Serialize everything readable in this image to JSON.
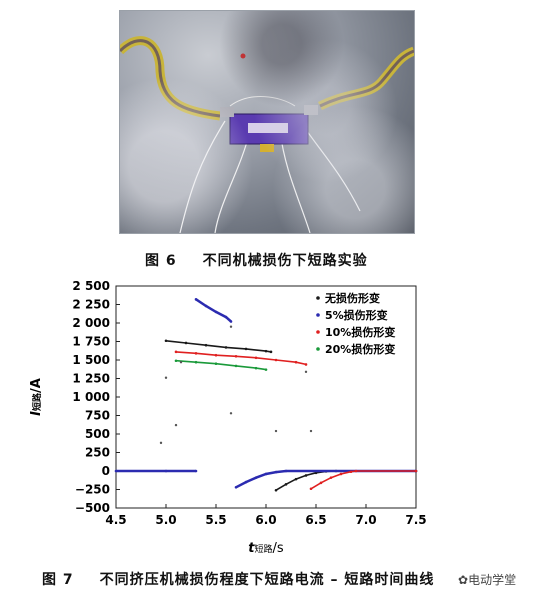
{
  "figure6": {
    "number": "图 6",
    "caption": "不同机械损伤下短路实验"
  },
  "figure7": {
    "number": "图 7",
    "caption": "不同挤压机械损伤程度下短路电流 – 短路时间曲线"
  },
  "watermark": "电动学堂",
  "chart_data": {
    "type": "scatter",
    "ylabel_main": "I",
    "ylabel_sub": "短路",
    "ylabel_unit": "/A",
    "xlabel_main": "t",
    "xlabel_sub": "短路",
    "xlabel_unit": "/s",
    "xlim": [
      4.5,
      7.5
    ],
    "ylim": [
      -500,
      2500
    ],
    "xticks": [
      "4.5",
      "5.0",
      "5.5",
      "6.0",
      "6.5",
      "7.0",
      "7.5"
    ],
    "yticks": [
      "2 500",
      "2 250",
      "2 000",
      "1 750",
      "1 500",
      "1 250",
      "1 000",
      "750",
      "500",
      "250",
      "0",
      "−250",
      "−500"
    ],
    "ytick_values": [
      2500,
      2250,
      2000,
      1750,
      1500,
      1250,
      1000,
      750,
      500,
      250,
      0,
      -250,
      -500
    ],
    "legend_position": "top-right",
    "grid": false,
    "series": [
      {
        "name": "无损伤形变",
        "color": "#1a1a1a",
        "points": [
          [
            5.0,
            1760
          ],
          [
            5.2,
            1730
          ],
          [
            5.4,
            1700
          ],
          [
            5.6,
            1670
          ],
          [
            5.8,
            1650
          ],
          [
            6.0,
            1620
          ],
          [
            6.05,
            1610
          ],
          [
            6.1,
            -260
          ],
          [
            6.2,
            -180
          ],
          [
            6.3,
            -110
          ],
          [
            6.4,
            -60
          ],
          [
            6.5,
            -25
          ],
          [
            6.6,
            -5
          ],
          [
            6.7,
            0
          ],
          [
            7.5,
            0
          ]
        ]
      },
      {
        "name": "5%损伤形变",
        "color": "#2b2bb0",
        "points": [
          [
            4.5,
            0
          ],
          [
            5.0,
            0
          ],
          [
            5.3,
            0
          ],
          [
            5.3,
            2320
          ],
          [
            5.4,
            2230
          ],
          [
            5.5,
            2150
          ],
          [
            5.6,
            2080
          ],
          [
            5.65,
            2020
          ],
          [
            5.7,
            -220
          ],
          [
            5.8,
            -150
          ],
          [
            5.9,
            -90
          ],
          [
            6.0,
            -40
          ],
          [
            6.1,
            -15
          ],
          [
            6.2,
            0
          ],
          [
            7.5,
            0
          ]
        ]
      },
      {
        "name": "10%损伤形变",
        "color": "#e02020",
        "points": [
          [
            5.1,
            1610
          ],
          [
            5.3,
            1590
          ],
          [
            5.5,
            1565
          ],
          [
            5.7,
            1550
          ],
          [
            5.9,
            1530
          ],
          [
            6.1,
            1500
          ],
          [
            6.3,
            1470
          ],
          [
            6.4,
            1440
          ],
          [
            6.45,
            -240
          ],
          [
            6.55,
            -160
          ],
          [
            6.65,
            -90
          ],
          [
            6.75,
            -40
          ],
          [
            6.85,
            -10
          ],
          [
            6.9,
            0
          ],
          [
            7.5,
            0
          ]
        ]
      },
      {
        "name": "20%损伤形变",
        "color": "#1a9a3a",
        "points": [
          [
            5.1,
            1490
          ],
          [
            5.3,
            1470
          ],
          [
            5.5,
            1450
          ],
          [
            5.7,
            1420
          ],
          [
            5.9,
            1390
          ],
          [
            6.0,
            1370
          ]
        ]
      }
    ],
    "scatter_points": [
      [
        4.95,
        380
      ],
      [
        5.0,
        1260
      ],
      [
        5.1,
        620
      ],
      [
        5.15,
        1470
      ],
      [
        5.65,
        780
      ],
      [
        6.1,
        540
      ],
      [
        6.45,
        540
      ],
      [
        6.4,
        1340
      ],
      [
        5.65,
        1950
      ]
    ]
  }
}
